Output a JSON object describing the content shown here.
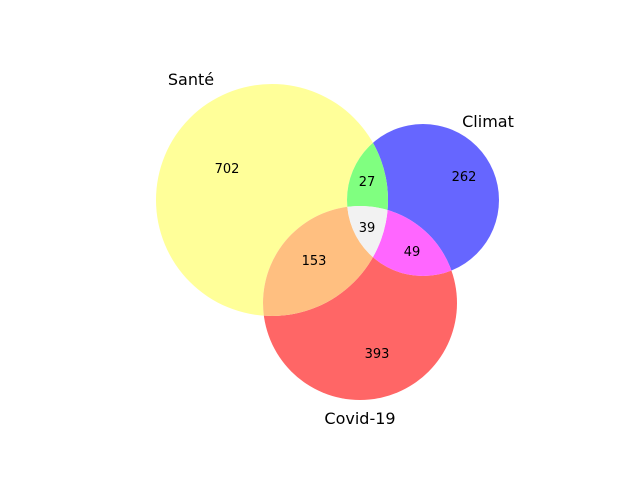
{
  "diagram": {
    "type": "venn3",
    "sets": [
      {
        "key": "A",
        "label": "Santé"
      },
      {
        "key": "B",
        "label": "Climat"
      },
      {
        "key": "C",
        "label": "Covid-19"
      }
    ],
    "regions": [
      {
        "key": "A_only",
        "count": "702",
        "color": "#ffff99"
      },
      {
        "key": "B_only",
        "count": "262",
        "color": "#6666ff"
      },
      {
        "key": "C_only",
        "count": "393",
        "color": "#ff6666"
      },
      {
        "key": "AB",
        "count": "27",
        "color": "#80ff80"
      },
      {
        "key": "AC",
        "count": "153",
        "color": "#ffbf80"
      },
      {
        "key": "BC",
        "count": "49",
        "color": "#ff66ff"
      },
      {
        "key": "ABC",
        "count": "39",
        "color": "#f2f2f2"
      }
    ]
  }
}
